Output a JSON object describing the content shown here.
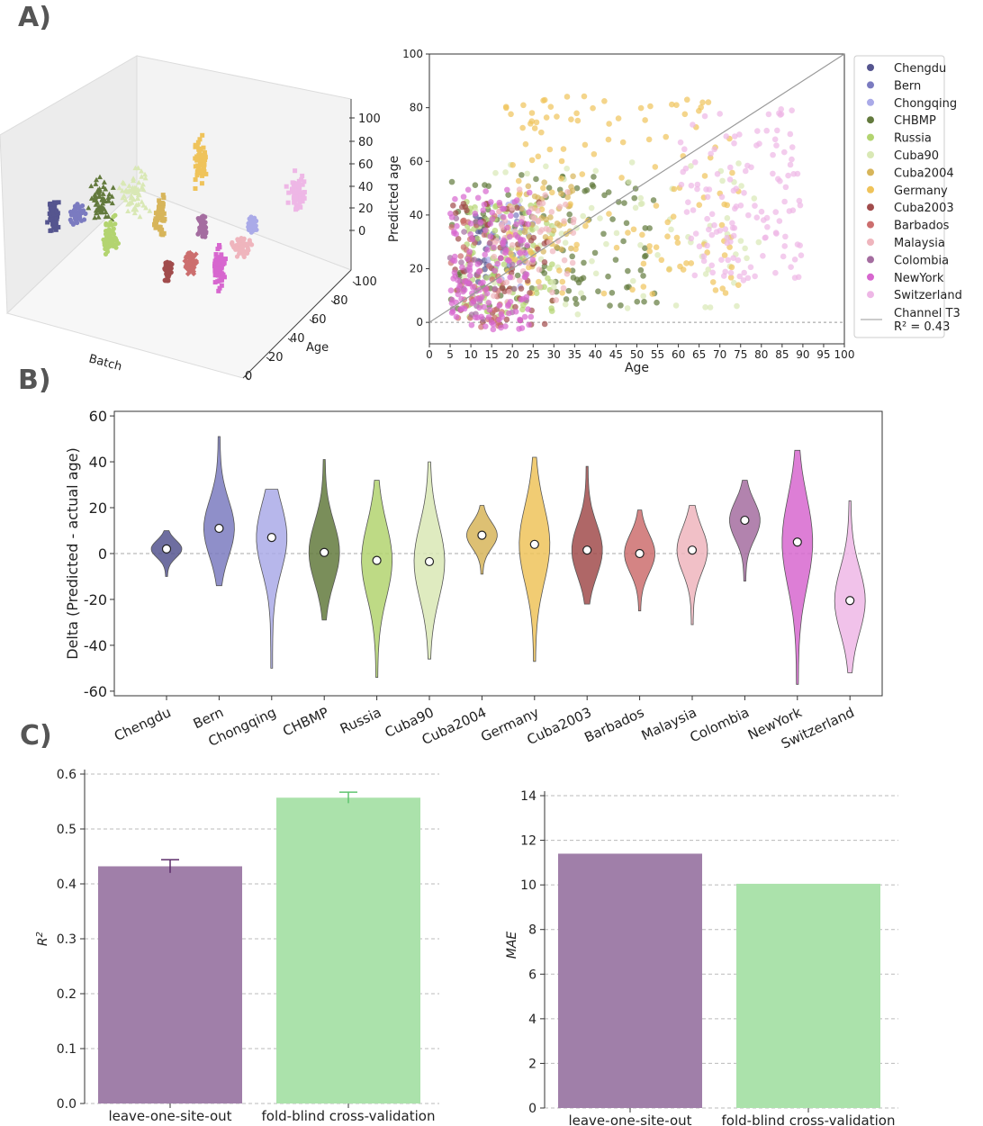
{
  "panels": {
    "a": "A)",
    "b": "B)",
    "c": "C)"
  },
  "colors": {
    "Chengdu": "#55558f",
    "Bern": "#7b7bc0",
    "Chongqing": "#aaaae8",
    "CHBMP": "#637a3d",
    "Russia": "#b3d470",
    "Cuba90": "#d9e8b5",
    "Cuba2004": "#d7b55a",
    "Germany": "#efc35a",
    "Cuba2003": "#a14c4c",
    "Barbados": "#cc6e6e",
    "Malaysia": "#efb5bd",
    "Colombia": "#a46da0",
    "NewYork": "#d767cf",
    "Switzerland": "#eeb7e6",
    "purple_bar": "#a07fa9",
    "green_bar": "#abe2ab"
  },
  "chart_data": [
    {
      "type": "scatter",
      "subtype": "3d",
      "xlabel": "Batch",
      "ylabel": "Age",
      "zlabel": "",
      "y_ticks": [
        "0",
        "20",
        "40",
        "60",
        "80",
        "100"
      ],
      "z_ticks": [
        "0",
        "20",
        "40",
        "60",
        "80",
        "100"
      ],
      "series_markers": "square, circle, triangle, diamond, star per site"
    },
    {
      "type": "scatter",
      "xlabel": "Age",
      "ylabel": "Predicted age",
      "xlim": [
        0,
        100
      ],
      "ylim": [
        -8,
        100
      ],
      "x_ticks": [
        "0",
        "5",
        "10",
        "15",
        "20",
        "25",
        "30",
        "35",
        "40",
        "45",
        "50",
        "55",
        "60",
        "65",
        "70",
        "75",
        "80",
        "85",
        "90",
        "95",
        "100"
      ],
      "y_ticks": [
        "0",
        "20",
        "40",
        "60",
        "80",
        "100"
      ],
      "legend_position": "right",
      "legend": [
        "Chengdu",
        "Bern",
        "Chongqing",
        "CHBMP",
        "Russia",
        "Cuba90",
        "Cuba2004",
        "Germany",
        "Cuba2003",
        "Barbados",
        "Malaysia",
        "Colombia",
        "NewYork",
        "Switzerland"
      ],
      "fit_line_label": "Channel T3",
      "fit_r2_label": "R² = 0.43",
      "clusters": [
        {
          "name": "Chengdu",
          "age": [
            11,
            14
          ],
          "pred": [
            15,
            40
          ],
          "n": 20
        },
        {
          "name": "Bern",
          "age": [
            15,
            25
          ],
          "pred": [
            20,
            45
          ],
          "n": 20
        },
        {
          "name": "Chongqing",
          "age": [
            14,
            24
          ],
          "pred": [
            12,
            45
          ],
          "n": 25
        },
        {
          "name": "CHBMP",
          "age": [
            5,
            55
          ],
          "pred": [
            5,
            55
          ],
          "n": 110
        },
        {
          "name": "Russia",
          "age": [
            8,
            30
          ],
          "pred": [
            2,
            45
          ],
          "n": 110
        },
        {
          "name": "Cuba90",
          "age": [
            8,
            80
          ],
          "pred": [
            2,
            60
          ],
          "n": 90
        },
        {
          "name": "Cuba2004",
          "age": [
            20,
            35
          ],
          "pred": [
            20,
            55
          ],
          "n": 40
        },
        {
          "name": "Germany",
          "age": [
            18,
            75
          ],
          "pred": [
            10,
            85
          ],
          "n": 140
        },
        {
          "name": "Cuba2003",
          "age": [
            5,
            30
          ],
          "pred": [
            -2,
            45
          ],
          "n": 60
        },
        {
          "name": "Barbados",
          "age": [
            5,
            18
          ],
          "pred": [
            -2,
            40
          ],
          "n": 50
        },
        {
          "name": "Malaysia",
          "age": [
            15,
            35
          ],
          "pred": [
            5,
            50
          ],
          "n": 60
        },
        {
          "name": "Colombia",
          "age": [
            5,
            25
          ],
          "pred": [
            0,
            40
          ],
          "n": 30
        },
        {
          "name": "NewYork",
          "age": [
            5,
            25
          ],
          "pred": [
            -3,
            50
          ],
          "n": 150
        },
        {
          "name": "Switzerland",
          "age": [
            60,
            90
          ],
          "pred": [
            15,
            80
          ],
          "n": 130
        }
      ]
    },
    {
      "type": "violin",
      "ylabel": "Delta (Predicted - actual age)",
      "ylim": [
        -62,
        62
      ],
      "y_ticks": [
        "60",
        "40",
        "20",
        "0",
        "-20",
        "-40",
        "-60"
      ],
      "categories": [
        "Chengdu",
        "Bern",
        "Chongqing",
        "CHBMP",
        "Russia",
        "Cuba90",
        "Cuba2004",
        "Germany",
        "Cuba2003",
        "Barbados",
        "Malaysia",
        "Colombia",
        "NewYork",
        "Switzerland"
      ],
      "medians": [
        2,
        11,
        7,
        0.5,
        -3,
        -3.5,
        8,
        4,
        1.5,
        0,
        1.5,
        14.5,
        5,
        -20.5
      ],
      "mins": [
        -10,
        -14,
        -50,
        -29,
        -54,
        -46,
        -9,
        -47,
        -22,
        -25,
        -31,
        -12,
        -57,
        -52
      ],
      "maxs": [
        10,
        51,
        28,
        41,
        32,
        40,
        21,
        42,
        38,
        19,
        21,
        32,
        45,
        23
      ]
    },
    {
      "type": "bar",
      "ylabel": "R²",
      "categories": [
        "leave-one-site-out",
        "fold-blind cross-validation"
      ],
      "values": [
        0.432,
        0.557
      ],
      "errors": [
        0.012,
        0.01
      ],
      "ylim": [
        0,
        0.6
      ],
      "y_ticks": [
        "0.0",
        "0.1",
        "0.2",
        "0.3",
        "0.4",
        "0.5",
        "0.6"
      ]
    },
    {
      "type": "bar",
      "ylabel": "MAE",
      "categories": [
        "leave-one-site-out",
        "fold-blind cross-validation"
      ],
      "values": [
        11.4,
        10.05
      ],
      "ylim": [
        0,
        14
      ],
      "y_ticks": [
        "0",
        "2",
        "4",
        "6",
        "8",
        "10",
        "12",
        "14"
      ]
    }
  ]
}
